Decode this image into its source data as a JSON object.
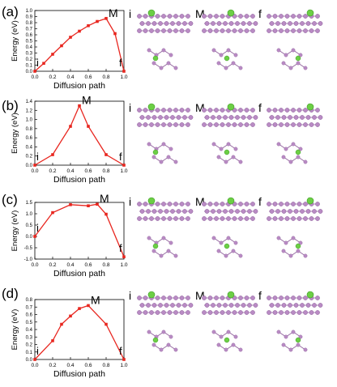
{
  "colors": {
    "line": "#e8261f",
    "marker": "#e8261f",
    "axis": "#000000",
    "atom_host": "#b98bc4",
    "atom_host_edge": "#8e5e9b",
    "atom_guest": "#6ccf45",
    "atom_guest_edge": "#3e9a26"
  },
  "structure_labels": [
    "i",
    "M",
    "f"
  ],
  "chart_data": [
    {
      "panel": "(a)",
      "type": "line",
      "xlabel": "Diffusion path",
      "ylabel": "Energy (eV)",
      "xlim": [
        0.0,
        1.0
      ],
      "ylim": [
        0.0,
        1.0
      ],
      "xticks": [
        "0.0",
        "0.2",
        "0.4",
        "0.6",
        "0.8",
        "1.0"
      ],
      "yticks": [
        "0.0",
        "0.1",
        "0.2",
        "0.3",
        "0.4",
        "0.5",
        "0.6",
        "0.7",
        "0.8",
        "0.9",
        "1.0"
      ],
      "x": [
        0.0,
        0.1,
        0.2,
        0.3,
        0.4,
        0.5,
        0.6,
        0.7,
        0.8,
        0.9,
        1.0
      ],
      "y": [
        0.0,
        0.13,
        0.28,
        0.42,
        0.56,
        0.66,
        0.75,
        0.82,
        0.87,
        0.62,
        0.0
      ],
      "annotations": {
        "start": "i",
        "peak": "M",
        "end": "f"
      }
    },
    {
      "panel": "(b)",
      "type": "line",
      "xlabel": "Diffusion path",
      "ylabel": "Energy (eV)",
      "xlim": [
        0.0,
        1.0
      ],
      "ylim": [
        0.0,
        1.4
      ],
      "xticks": [
        "0.0",
        "0.2",
        "0.4",
        "0.6",
        "0.8",
        "1.0"
      ],
      "yticks": [
        "0.0",
        "0.2",
        "0.4",
        "0.6",
        "0.8",
        "1.0",
        "1.2",
        "1.4"
      ],
      "x": [
        0.0,
        0.2,
        0.4,
        0.5,
        0.6,
        0.8,
        1.0
      ],
      "y": [
        0.0,
        0.23,
        0.85,
        1.3,
        0.85,
        0.23,
        0.0
      ],
      "annotations": {
        "start": "i",
        "peak": "M",
        "end": "f"
      }
    },
    {
      "panel": "(c)",
      "type": "line",
      "xlabel": "Diffusion path",
      "ylabel": "Energy (eV)",
      "xlim": [
        0.0,
        1.0
      ],
      "ylim": [
        -1.0,
        1.5
      ],
      "xticks": [
        "0.0",
        "0.2",
        "0.4",
        "0.6",
        "0.8",
        "1.0"
      ],
      "yticks": [
        "-1.0",
        "-0.5",
        "0.0",
        "0.5",
        "1.0",
        "1.5"
      ],
      "x": [
        0.0,
        0.2,
        0.4,
        0.6,
        0.7,
        0.8,
        1.0
      ],
      "y": [
        0.0,
        1.05,
        1.4,
        1.35,
        1.42,
        0.98,
        -0.9
      ],
      "annotations": {
        "start": "i",
        "peak": "M",
        "end": "f"
      }
    },
    {
      "panel": "(d)",
      "type": "line",
      "xlabel": "Diffusion path",
      "ylabel": "Energy (eV)",
      "xlim": [
        0.0,
        1.0
      ],
      "ylim": [
        0.0,
        0.8
      ],
      "xticks": [
        "0.0",
        "0.2",
        "0.4",
        "0.6",
        "0.8",
        "1.0"
      ],
      "yticks": [
        "0.0",
        "0.1",
        "0.2",
        "0.3",
        "0.4",
        "0.5",
        "0.6",
        "0.7",
        "0.8"
      ],
      "x": [
        0.0,
        0.2,
        0.3,
        0.4,
        0.5,
        0.6,
        0.8,
        1.0
      ],
      "y": [
        0.0,
        0.25,
        0.47,
        0.58,
        0.68,
        0.72,
        0.47,
        0.0
      ],
      "annotations": {
        "start": "i",
        "peak": "M",
        "end": "f"
      }
    }
  ]
}
